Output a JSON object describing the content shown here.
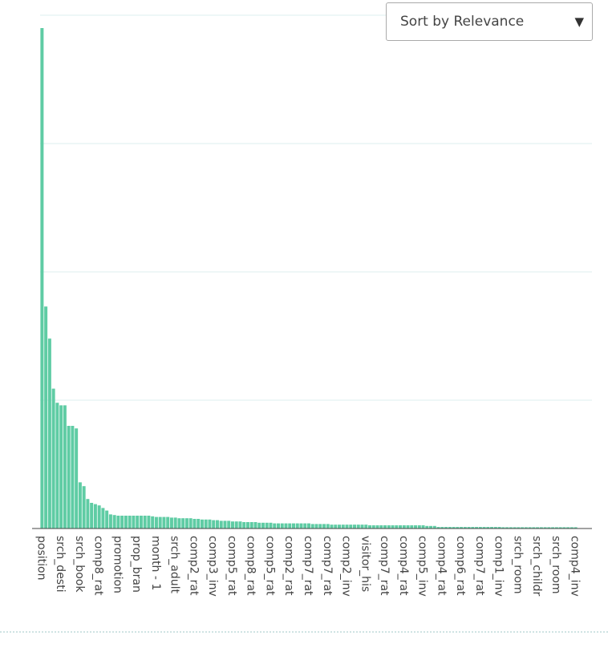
{
  "controls": {
    "sort": {
      "label": "Sort by Relevance"
    }
  },
  "chart_data": {
    "type": "bar",
    "color": "#5fcca4",
    "grid": true,
    "ylim": [
      0,
      4
    ],
    "yticks": [
      0,
      1,
      2,
      3,
      4
    ],
    "categories": [
      "position",
      null,
      null,
      null,
      null,
      "srch_desti",
      null,
      null,
      null,
      null,
      "srch_book",
      null,
      null,
      null,
      null,
      "comp8_rat",
      null,
      null,
      null,
      null,
      "promotion",
      null,
      null,
      null,
      null,
      "prop_bran",
      null,
      null,
      null,
      null,
      "month - 1",
      null,
      null,
      null,
      null,
      "srch_adult",
      null,
      null,
      null,
      null,
      "comp2_rat",
      null,
      null,
      null,
      null,
      "comp3_inv",
      null,
      null,
      null,
      null,
      "comp5_rat",
      null,
      null,
      null,
      null,
      "comp8_rat",
      null,
      null,
      null,
      null,
      "comp5_rat",
      null,
      null,
      null,
      null,
      "comp2_rat",
      null,
      null,
      null,
      null,
      "comp7_rat",
      null,
      null,
      null,
      null,
      "comp7_rat",
      null,
      null,
      null,
      null,
      "comp2_inv",
      null,
      null,
      null,
      null,
      "visitor_his",
      null,
      null,
      null,
      null,
      "comp7_rat",
      null,
      null,
      null,
      null,
      "comp4_rat",
      null,
      null,
      null,
      null,
      "comp5_inv",
      null,
      null,
      null,
      null,
      "comp4_rat",
      null,
      null,
      null,
      null,
      "comp6_rat",
      null,
      null,
      null,
      null,
      "comp7_rat",
      null,
      null,
      null,
      null,
      "comp1_inv",
      null,
      null,
      null,
      null,
      "srch_room",
      null,
      null,
      null,
      null,
      "srch_childr",
      null,
      null,
      null,
      null,
      "srch_room",
      null,
      null,
      null,
      null,
      "comp4_inv"
    ],
    "values": [
      3.9,
      1.73,
      1.48,
      1.09,
      0.98,
      0.96,
      0.96,
      0.8,
      0.8,
      0.78,
      0.36,
      0.33,
      0.23,
      0.2,
      0.19,
      0.18,
      0.16,
      0.14,
      0.11,
      0.105,
      0.1,
      0.1,
      0.1,
      0.1,
      0.1,
      0.1,
      0.1,
      0.1,
      0.1,
      0.095,
      0.09,
      0.09,
      0.09,
      0.09,
      0.085,
      0.085,
      0.08,
      0.08,
      0.08,
      0.08,
      0.075,
      0.075,
      0.07,
      0.07,
      0.07,
      0.065,
      0.065,
      0.06,
      0.06,
      0.06,
      0.055,
      0.055,
      0.055,
      0.05,
      0.05,
      0.05,
      0.05,
      0.045,
      0.045,
      0.045,
      0.045,
      0.04,
      0.04,
      0.04,
      0.04,
      0.04,
      0.04,
      0.04,
      0.04,
      0.04,
      0.04,
      0.035,
      0.035,
      0.035,
      0.035,
      0.035,
      0.03,
      0.03,
      0.03,
      0.03,
      0.03,
      0.03,
      0.03,
      0.03,
      0.03,
      0.03,
      0.025,
      0.025,
      0.025,
      0.025,
      0.025,
      0.025,
      0.025,
      0.025,
      0.025,
      0.025,
      0.025,
      0.025,
      0.025,
      0.025,
      0.025,
      0.02,
      0.02,
      0.02,
      0.012,
      0.012,
      0.012,
      0.012,
      0.012,
      0.012,
      0.012,
      0.012,
      0.012,
      0.012,
      0.012,
      0.012,
      0.012,
      0.012,
      0.012,
      0.012,
      0.012,
      0.01,
      0.01,
      0.01,
      0.01,
      0.01,
      0.01,
      0.01,
      0.01,
      0.01,
      0.01,
      0.01,
      0.01,
      0.01,
      0.01,
      0.01,
      0.01,
      0.01,
      0.01,
      0.01,
      0.01
    ]
  }
}
